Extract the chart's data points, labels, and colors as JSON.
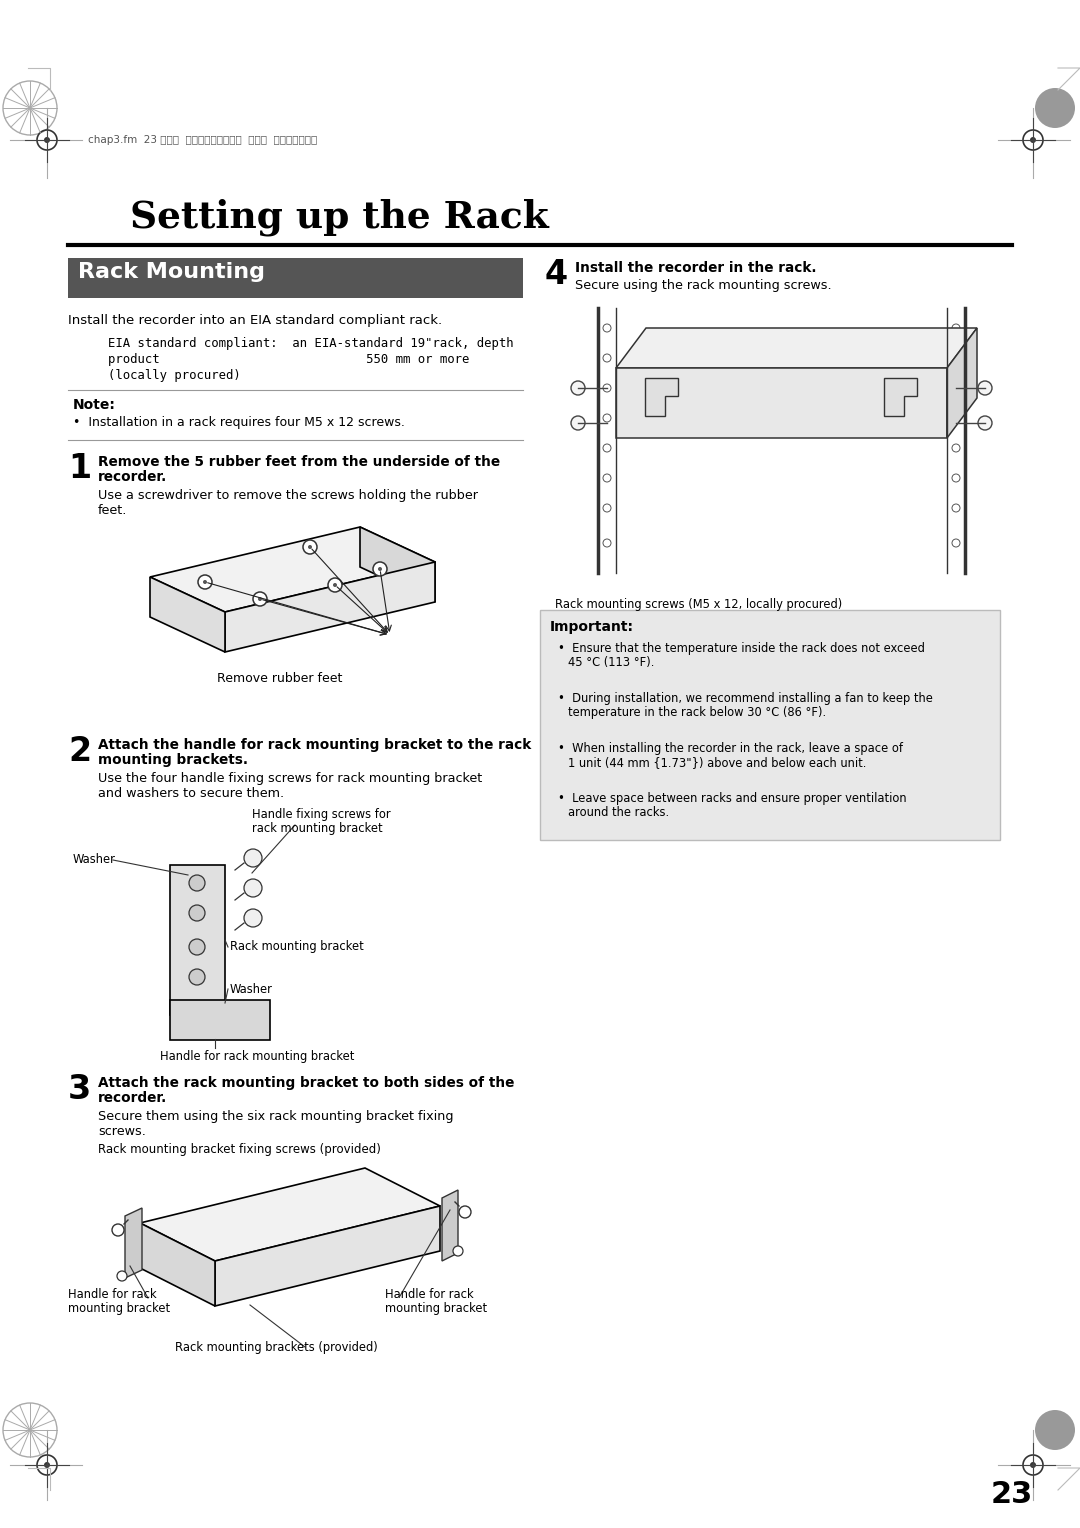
{
  "page_bg": "#ffffff",
  "page_number": "23",
  "header_text": "chap3.fm  23 ページ  ２００８年４月８日  火曜日  午後５時２２分",
  "title": "Setting up the Rack",
  "section_title": "Rack Mounting",
  "section_title_bg": "#555555",
  "section_title_color": "#ffffff",
  "intro_text": "Install the recorder into an EIA standard compliant rack.",
  "eia_line1": "EIA standard compliant:  an EIA-standard 19\"rack, depth",
  "eia_line2": "product                            550 mm or more",
  "eia_line3": "(locally procured)",
  "note_title": "Note:",
  "note_bullet": "Installation in a rack requires four M5 x 12 screws.",
  "step1_num": "1",
  "step1_t1": "Remove the 5 rubber feet from the underside of the",
  "step1_t2": "recorder.",
  "step1_b1": "Use a screwdriver to remove the screws holding the rubber",
  "step1_b2": "feet.",
  "step1_caption": "Remove rubber feet",
  "step2_num": "2",
  "step2_t1": "Attach the handle for rack mounting bracket to the rack",
  "step2_t2": "mounting brackets.",
  "step2_b1": "Use the four handle fixing screws for rack mounting bracket",
  "step2_b2": "and washers to secure them.",
  "step2_lbl_screws1": "Handle fixing screws for",
  "step2_lbl_screws2": "rack mounting bracket",
  "step2_lbl_washer1": "Washer",
  "step2_lbl_bracket": "Rack mounting bracket",
  "step2_lbl_washer2": "Washer",
  "step2_lbl_handle": "Handle for rack mounting bracket",
  "step3_num": "3",
  "step3_t1": "Attach the rack mounting bracket to both sides of the",
  "step3_t2": "recorder.",
  "step3_b1": "Secure them using the six rack mounting bracket fixing",
  "step3_b2": "screws.",
  "step3_lbl_screw": "Rack mounting bracket fixing screws (provided)",
  "step3_lbl_h1a": "Handle for rack",
  "step3_lbl_h1b": "mounting bracket",
  "step3_lbl_brk": "Rack mounting brackets (provided)",
  "step3_lbl_h2a": "Handle for rack",
  "step3_lbl_h2b": "mounting bracket",
  "step4_num": "4",
  "step4_title": "Install the recorder in the rack.",
  "step4_body": "Secure using the rack mounting screws.",
  "step4_caption": "Rack mounting screws (M5 x 12, locally procured)",
  "imp_title": "Important:",
  "imp_bg": "#e8e8e8",
  "imp_b1a": "Ensure that the temperature inside the rack does not exceed",
  "imp_b1b": "45 °C (113 °F).",
  "imp_b2a": "During installation, we recommend installing a fan to keep the",
  "imp_b2b": "temperature in the rack below 30 °C (86 °F).",
  "imp_b3a": "When installing the recorder in the rack, leave a space of",
  "imp_b3b": "1 unit (44 mm {1.73\"}) above and below each unit.",
  "imp_b4a": "Leave space between racks and ensure proper ventilation",
  "imp_b4b": "around the racks."
}
